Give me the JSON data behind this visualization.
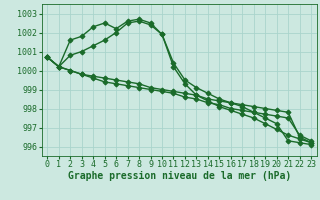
{
  "background_color": "#cce8e0",
  "grid_color": "#aad4cc",
  "line_color": "#1a6b2a",
  "line_width": 1.0,
  "marker": "D",
  "markersize": 2.5,
  "xlabel": "Graphe pression niveau de la mer (hPa)",
  "xlabel_color": "#1a6b2a",
  "xlabel_fontsize": 7.0,
  "tick_color": "#1a6b2a",
  "tick_fontsize": 6.0,
  "ylim": [
    995.5,
    1003.5
  ],
  "yticks": [
    996,
    997,
    998,
    999,
    1000,
    1001,
    1002,
    1003
  ],
  "xticks": [
    0,
    1,
    2,
    3,
    4,
    5,
    6,
    7,
    8,
    9,
    10,
    11,
    12,
    13,
    14,
    15,
    16,
    17,
    18,
    19,
    20,
    21,
    22,
    23
  ],
  "series": [
    [
      1000.7,
      1000.2,
      1001.6,
      1001.8,
      1002.3,
      1002.5,
      1002.2,
      1002.6,
      1002.7,
      1002.5,
      1001.9,
      1000.4,
      999.5,
      999.1,
      998.8,
      998.5,
      998.3,
      998.1,
      997.8,
      997.5,
      997.2,
      996.3,
      996.2,
      996.1
    ],
    [
      1000.7,
      1000.2,
      1000.8,
      1001.0,
      1001.3,
      1001.6,
      1002.0,
      1002.5,
      1002.6,
      1002.4,
      1001.9,
      1000.2,
      999.3,
      998.7,
      998.4,
      998.1,
      997.9,
      997.7,
      997.5,
      997.2,
      996.9,
      996.6,
      996.4,
      996.2
    ],
    [
      1000.7,
      1000.2,
      1000.0,
      999.8,
      999.7,
      999.6,
      999.5,
      999.4,
      999.3,
      999.1,
      999.0,
      998.9,
      998.8,
      998.7,
      998.5,
      998.4,
      998.3,
      998.2,
      998.1,
      998.0,
      997.9,
      997.8,
      996.5,
      996.2
    ],
    [
      1000.7,
      1000.2,
      1000.0,
      999.8,
      999.6,
      999.4,
      999.3,
      999.2,
      999.1,
      999.0,
      998.9,
      998.8,
      998.6,
      998.5,
      998.3,
      998.2,
      998.0,
      997.9,
      997.8,
      997.7,
      997.6,
      997.5,
      996.6,
      996.3
    ]
  ]
}
